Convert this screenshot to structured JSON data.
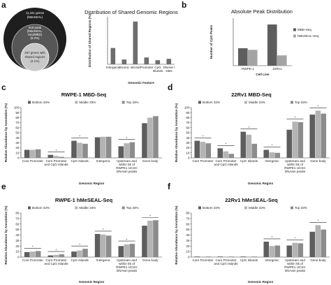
{
  "panel_labels": [
    "a",
    "b",
    "c",
    "d",
    "e",
    "f"
  ],
  "venn": {
    "outer_lines": [
      "11,341 genes",
      "(hMeSEAL)"
    ],
    "middle_lines": [
      "619 peak",
      "(hMeSEAL-",
      "Seq/MBD)",
      "(5.2%)"
    ],
    "inner_lines": [
      "257 genes with",
      "shared regions",
      "(4.1%)"
    ]
  },
  "chart_data": [
    {
      "id": "distribution",
      "type": "bar",
      "title": "Distribution of Shared Genomic Regions",
      "xlabel": "Genomic Feature",
      "ylabel": "Distribution of Shared Regions (%)",
      "ylim": [
        0,
        70
      ],
      "categories": [
        "Intergenic",
        "Exonic",
        "Intronic",
        "Promoter",
        "CpG Islands",
        "DNAse I sites"
      ],
      "series": [
        {
          "values": [
            24,
            7,
            63,
            10,
            6,
            8
          ],
          "color": "#6e6e6e"
        }
      ],
      "grid": false
    },
    {
      "id": "absolute",
      "type": "bar",
      "title": "Absolute Peak Distribution",
      "xlabel": "Cell Line",
      "ylabel": "Number of CpG Peaks",
      "ylim": [
        0,
        60
      ],
      "categories": [
        "RWPE-1",
        "22Rv1"
      ],
      "series": [
        {
          "name": "MBD-Seq",
          "values": [
            22,
            52
          ],
          "color": "#5e5e5e"
        },
        {
          "name": "hMeSEAL-Seq",
          "values": [
            20,
            13
          ],
          "color": "#a4a4a4"
        }
      ],
      "legend": "right",
      "grid": false
    },
    {
      "id": "rwpe_mbd",
      "type": "bar",
      "title": "RWPE-1 MBD-Seq",
      "xlabel": "Genomic Region",
      "ylabel": "Relative Abundance by Annotation (%)",
      "ylim": [
        0,
        100
      ],
      "yticks": [
        0,
        10,
        20,
        30,
        40,
        50,
        60,
        70,
        80,
        90,
        100
      ],
      "categories": [
        "Core Promoter",
        "Core Promoter and CpG Islands",
        "CpG Islands",
        "Intergenic",
        "Upstream and within 5k of RWPE1 UCSC DNAseI peaks",
        "Gene body"
      ],
      "series": [
        {
          "name": "Bottom 33%",
          "values": [
            16,
            6,
            34,
            41,
            23,
            69
          ],
          "color": "#5e5e5e"
        },
        {
          "name": "Middle 33%",
          "values": [
            16,
            4,
            30,
            42,
            29,
            80
          ],
          "color": "#b4b4b4"
        },
        {
          "name": "Top 33%",
          "values": [
            17,
            2,
            28,
            42,
            31,
            83
          ],
          "color": "#8c8c8c"
        }
      ],
      "significance": [
        1,
        2,
        4
      ],
      "legend": "top",
      "grid": false
    },
    {
      "id": "rv1_mbd",
      "type": "bar",
      "title": "22Rv1 MBD-Seq",
      "xlabel": "Genomic Region",
      "ylabel": "Relative Abundance by Annotation (%)",
      "ylim": [
        0,
        100
      ],
      "yticks": [
        0,
        10,
        20,
        30,
        40,
        50,
        60,
        70,
        80,
        90,
        100
      ],
      "categories": [
        "Core Promoter",
        "Core Promoter and CpG Islands",
        "CpG Islands",
        "Intergenic",
        "Upstream and within 5k of RWPE1 UCSC DNAseI peaks",
        "Gene body"
      ],
      "series": [
        {
          "name": "Bottom 33%",
          "values": [
            34,
            19,
            52,
            16,
            56,
            86
          ],
          "color": "#5e5e5e"
        },
        {
          "name": "Middle 33%",
          "values": [
            32,
            13,
            46,
            11,
            72,
            94
          ],
          "color": "#b4b4b4"
        },
        {
          "name": "Top 33%",
          "values": [
            29,
            8,
            28,
            10,
            71,
            88
          ],
          "color": "#8c8c8c"
        }
      ],
      "significance": [
        0,
        1,
        2,
        3,
        4,
        5
      ],
      "legend": "top",
      "grid": false
    },
    {
      "id": "rwpe_hmeseal",
      "type": "bar",
      "title": "RWPE-1 hMeSEAL-Seq",
      "xlabel": "Genomic Region",
      "ylabel": "Relative Abundance by Annotation (%)",
      "ylim": [
        0,
        80
      ],
      "yticks": [
        0,
        10,
        20,
        30,
        40,
        50,
        60,
        70,
        80
      ],
      "categories": [
        "Core Promoter",
        "Core Promoter and CpG Islands",
        "CpG Islands",
        "Intergenic",
        "Upstream and within 5k of RWPE1 UCSC DNAseI peaks",
        "Gene body"
      ],
      "series": [
        {
          "name": "Bottom 33%",
          "values": [
            9,
            3,
            10,
            42,
            20,
            57
          ],
          "color": "#5e5e5e"
        },
        {
          "name": "Middle 33%",
          "values": [
            10,
            4,
            12,
            41,
            23,
            66
          ],
          "color": "#b4b4b4"
        },
        {
          "name": "Top 33%",
          "values": [
            11,
            5,
            15,
            39,
            24,
            67
          ],
          "color": "#8c8c8c"
        }
      ],
      "significance": [
        0,
        1,
        2,
        3,
        4,
        5
      ],
      "legend": "top",
      "grid": false
    },
    {
      "id": "rv1_hmeseal",
      "type": "bar",
      "title": "22Rv1 hMeSEAL-Seq",
      "xlabel": "Genomic Region",
      "ylabel": "Relative Abundance by Annotation (%)",
      "ylim": [
        0,
        80
      ],
      "yticks": [
        0,
        10,
        20,
        30,
        40,
        50,
        60,
        70,
        80
      ],
      "categories": [
        "Core Promoter",
        "Core Promoter and CpG Islands",
        "CpG Islands",
        "Intergenic",
        "Upstream and within 5k of RWPE1 UCSC DNAseI peaks",
        "Gene body"
      ],
      "series": [
        {
          "name": "Bottom 33%",
          "values": [
            1,
            1,
            1,
            28,
            21,
            46
          ],
          "color": "#5e5e5e"
        },
        {
          "name": "Middle 33%",
          "values": [
            1,
            1,
            1,
            20,
            26,
            58
          ],
          "color": "#b4b4b4"
        },
        {
          "name": "Top 33%",
          "values": [
            1,
            1,
            1,
            21,
            25,
            50
          ],
          "color": "#8c8c8c"
        }
      ],
      "significance": [
        3,
        4,
        5
      ],
      "legend": "top",
      "grid": false
    }
  ]
}
